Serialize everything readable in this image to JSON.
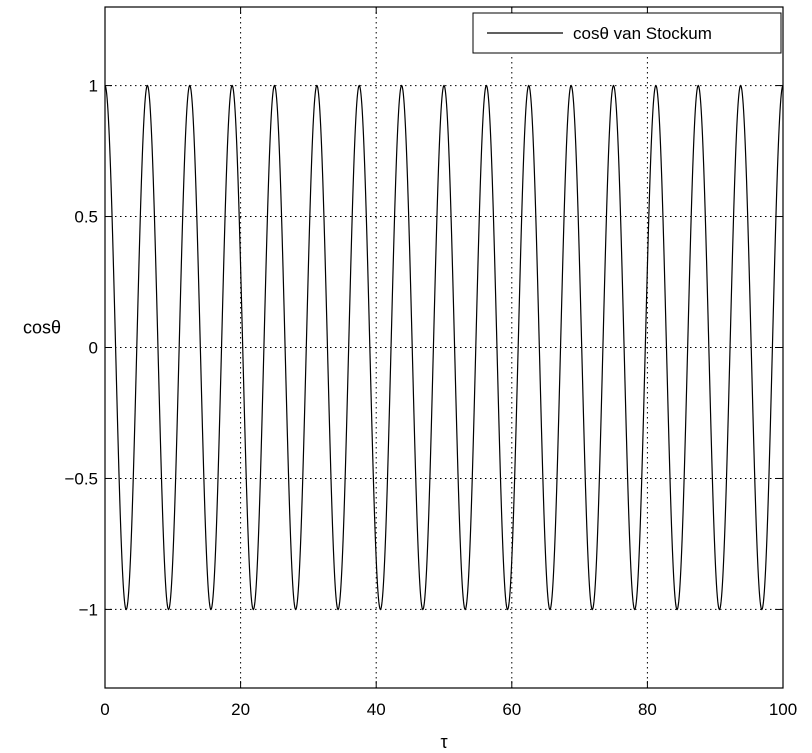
{
  "chart_data": {
    "type": "line",
    "title": "",
    "xlabel": "τ",
    "ylabel": "cosθ",
    "xlim": [
      0,
      100
    ],
    "ylim": [
      -1.3,
      1.3
    ],
    "grid": true,
    "grid_style": "dotted",
    "legend_position": "top-right",
    "x_ticks": [
      0,
      20,
      40,
      60,
      80,
      100
    ],
    "x_tick_labels": [
      "0",
      "20",
      "40",
      "60",
      "80",
      "100"
    ],
    "y_ticks": [
      1,
      0.5,
      0,
      -0.5,
      -1
    ],
    "y_tick_labels": [
      "1",
      "0.5",
      "0",
      "−0.5",
      "−1"
    ],
    "line_color": "#000000",
    "series": [
      {
        "name": "cosθ van Stockum",
        "function": "cos(omega * tau)",
        "amplitude": 1,
        "period": 6.25,
        "x_range": [
          0,
          100
        ],
        "samples": 1601
      }
    ]
  }
}
